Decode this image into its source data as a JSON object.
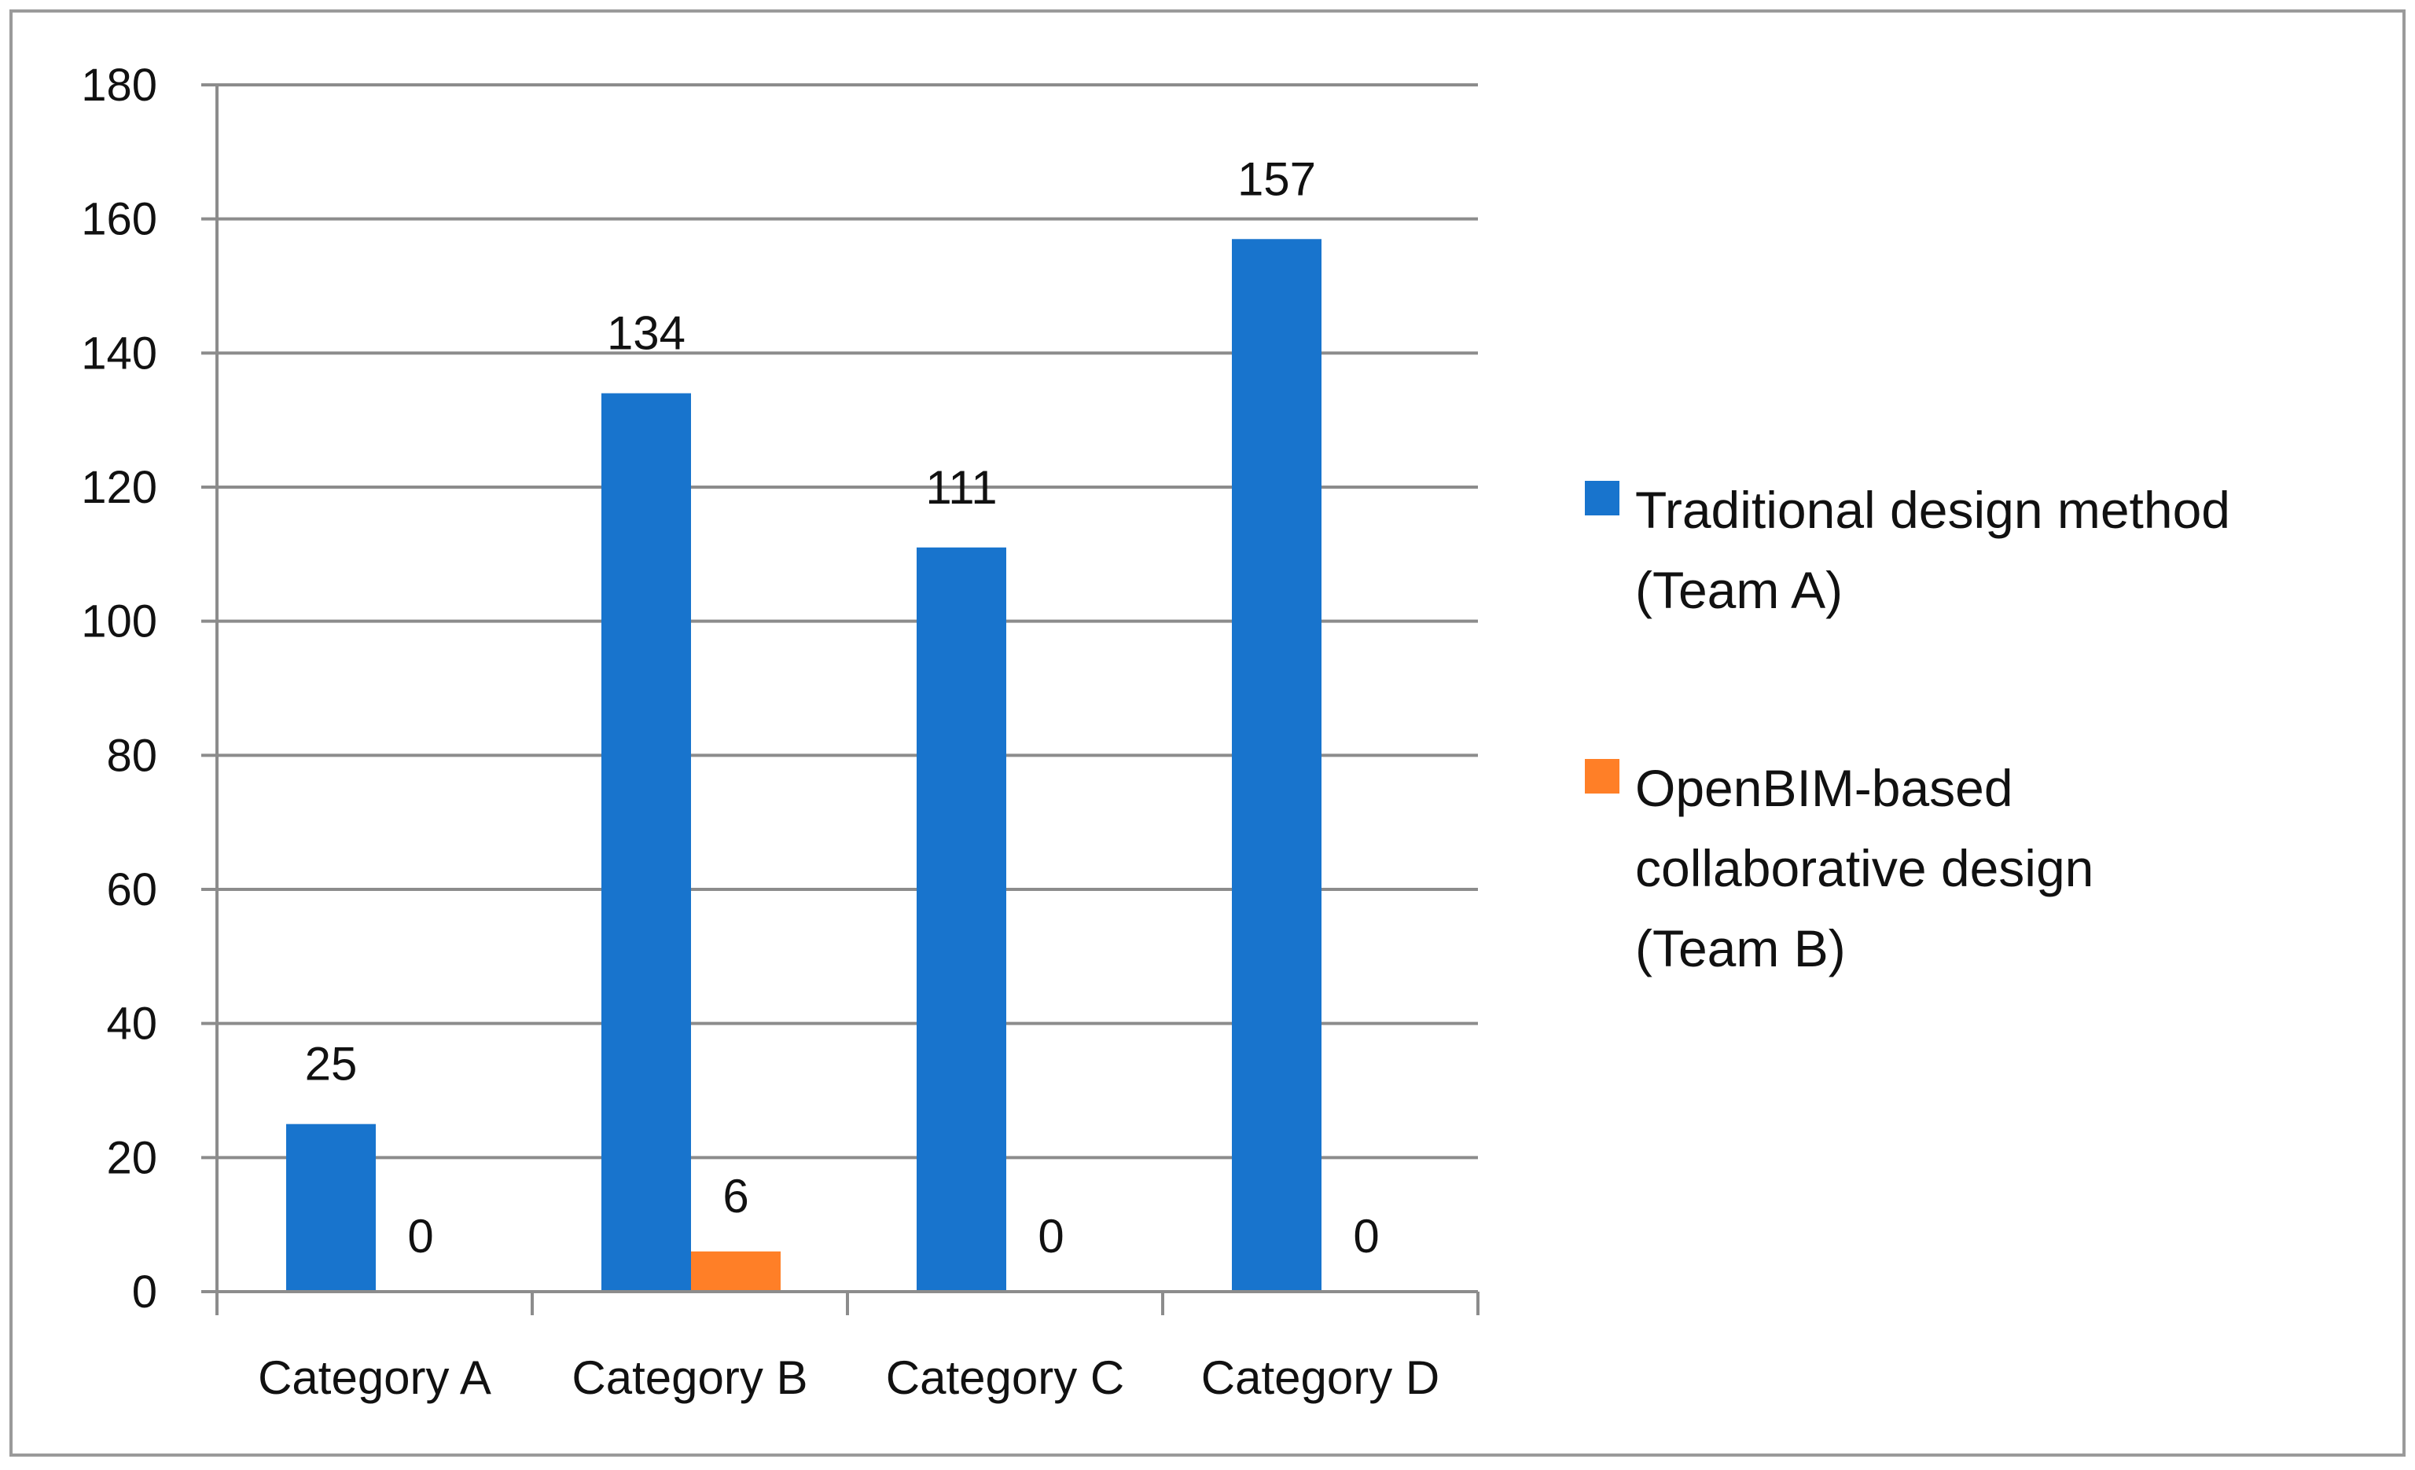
{
  "chart_data": {
    "type": "bar",
    "title": "",
    "xlabel": "",
    "ylabel": "",
    "categories": [
      "Category A",
      "Category B",
      "Category C",
      "Category D"
    ],
    "series": [
      {
        "name": "Traditional design method (Team A)",
        "legend_lines": [
          "Traditional design method",
          "(Team A)"
        ],
        "color": "#1874CD",
        "values": [
          25,
          134,
          111,
          157
        ]
      },
      {
        "name": "OpenBIM-based collaborative design (Team B)",
        "legend_lines": [
          "OpenBIM-based",
          "collaborative design",
          "(Team B)"
        ],
        "color": "#FF7F27",
        "values": [
          0,
          6,
          0,
          0
        ]
      }
    ],
    "ylim": [
      0,
      180
    ],
    "yticks": [
      0,
      20,
      40,
      60,
      80,
      100,
      120,
      140,
      160,
      180
    ],
    "grid": true,
    "legend_position": "right",
    "data_labels": true
  }
}
